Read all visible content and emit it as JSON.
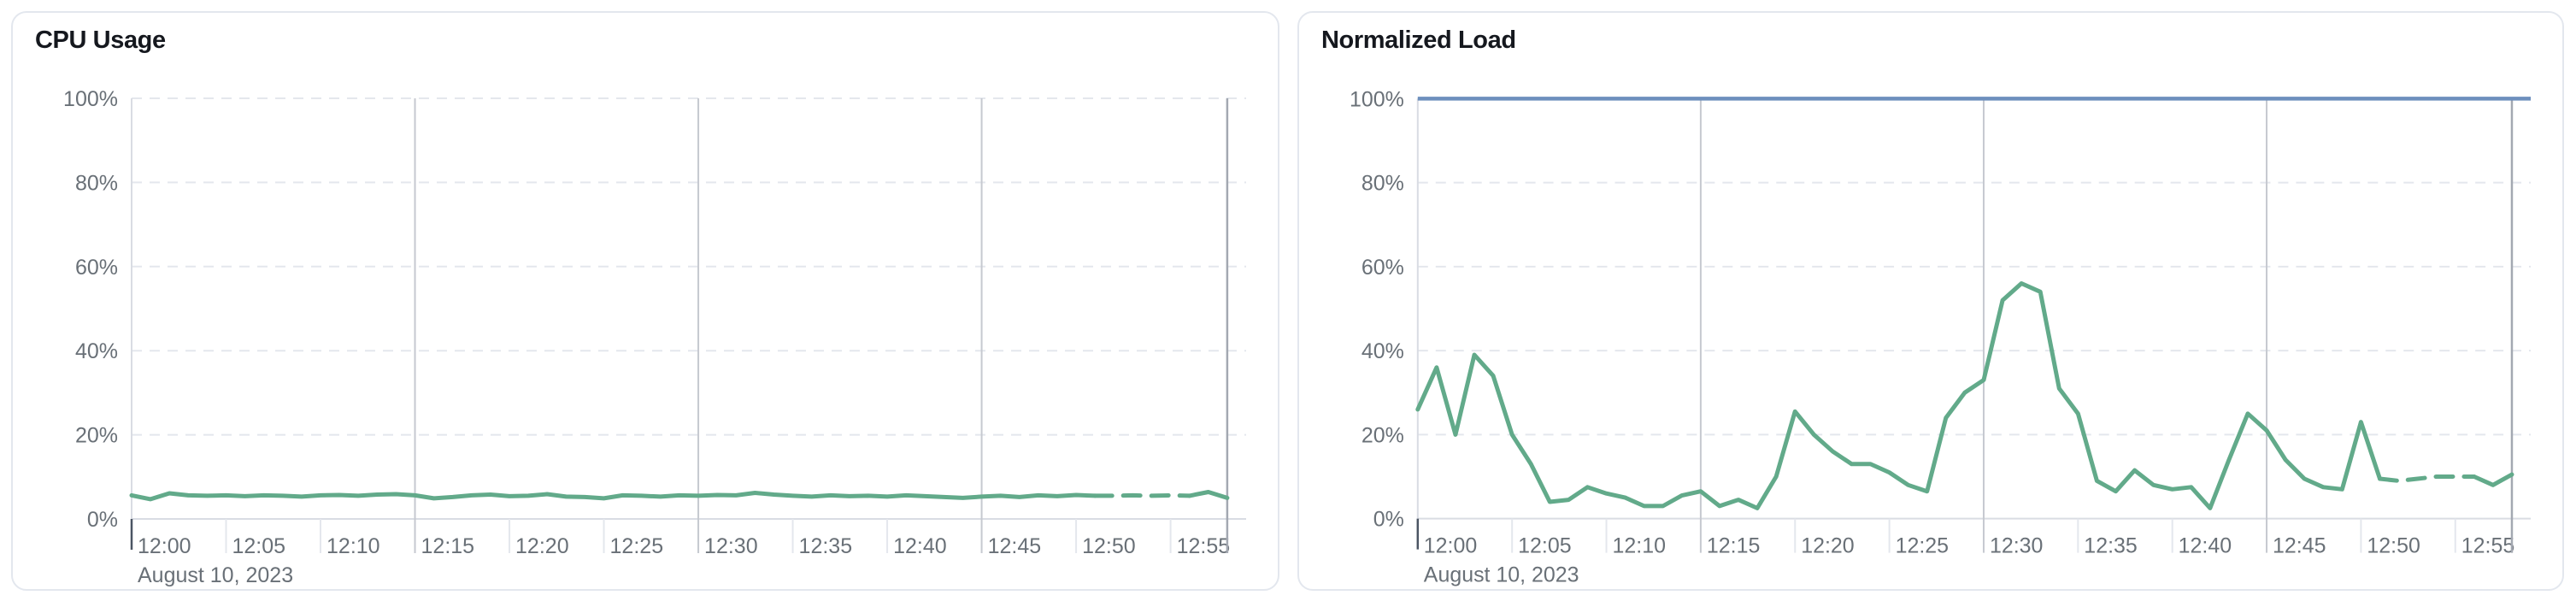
{
  "theme": {
    "panel_background": "#ffffff",
    "panel_border": "#e3e7ee",
    "title_color": "#15181e",
    "tick_text_color": "#697077",
    "grid_dashed_color": "#e4e7ed",
    "grid_solid_color": "#d9dce3",
    "grid_major_color": "#c6c9d0",
    "end_line_color": "#a3a8b1",
    "origin_tick_color": "#4b5563",
    "series_green": "#62aa8a",
    "limit_blue": "#6d8fbd"
  },
  "chart_data": [
    {
      "type": "line",
      "title": "CPU Usage",
      "date_label": "August 10, 2023",
      "x_ticks": [
        "12:00",
        "12:05",
        "12:10",
        "12:15",
        "12:20",
        "12:25",
        "12:30",
        "12:35",
        "12:40",
        "12:45",
        "12:50",
        "12:55"
      ],
      "x_tick_interval_minutes": 5,
      "y_ticks": [
        "0%",
        "20%",
        "40%",
        "60%",
        "80%",
        "100%"
      ],
      "ylim": [
        0,
        100
      ],
      "grid": true,
      "start_minute": 0,
      "interval_minutes": 1,
      "dash_start_minute": 51,
      "dash_end_minute": 56,
      "series": [
        {
          "name": "cpu",
          "color": "#62aa8a",
          "values": [
            5.6,
            4.7,
            6.1,
            5.6,
            5.5,
            5.6,
            5.4,
            5.6,
            5.5,
            5.3,
            5.6,
            5.7,
            5.5,
            5.8,
            5.9,
            5.6,
            4.9,
            5.2,
            5.6,
            5.8,
            5.4,
            5.5,
            5.9,
            5.3,
            5.2,
            4.9,
            5.6,
            5.5,
            5.3,
            5.6,
            5.5,
            5.7,
            5.6,
            6.2,
            5.8,
            5.5,
            5.3,
            5.6,
            5.4,
            5.5,
            5.3,
            5.6,
            5.4,
            5.2,
            5.0,
            5.3,
            5.5,
            5.2,
            5.6,
            5.4,
            5.7,
            5.5,
            5.5,
            5.6,
            5.5,
            5.6,
            5.5,
            6.4,
            5.0
          ]
        }
      ]
    },
    {
      "type": "line",
      "title": "Normalized Load",
      "date_label": "August 10, 2023",
      "x_ticks": [
        "12:00",
        "12:05",
        "12:10",
        "12:15",
        "12:20",
        "12:25",
        "12:30",
        "12:35",
        "12:40",
        "12:45",
        "12:50",
        "12:55"
      ],
      "x_tick_interval_minutes": 5,
      "y_ticks": [
        "0%",
        "20%",
        "40%",
        "60%",
        "80%",
        "100%"
      ],
      "ylim": [
        0,
        100
      ],
      "grid": true,
      "start_minute": 0,
      "interval_minutes": 1,
      "dash_start_minute": 51,
      "dash_end_minute": 56,
      "limit_line": {
        "name": "limit",
        "value": 100,
        "color": "#6d8fbd"
      },
      "series": [
        {
          "name": "load",
          "color": "#62aa8a",
          "values": [
            26,
            36,
            20,
            39,
            34,
            20,
            13,
            4,
            4.5,
            7.5,
            6,
            5,
            3,
            3,
            5.5,
            6.5,
            3,
            4.5,
            2.5,
            10,
            25.5,
            20,
            16,
            13,
            13,
            11,
            8,
            6.5,
            24,
            30,
            33,
            52,
            56,
            54,
            31,
            25,
            9,
            6.5,
            11.5,
            8,
            7,
            7.5,
            2.5,
            14,
            25,
            21,
            14,
            9.5,
            7.5,
            7,
            23,
            9.5,
            9,
            9.5,
            10,
            10,
            10,
            8,
            10.5
          ]
        }
      ]
    }
  ]
}
